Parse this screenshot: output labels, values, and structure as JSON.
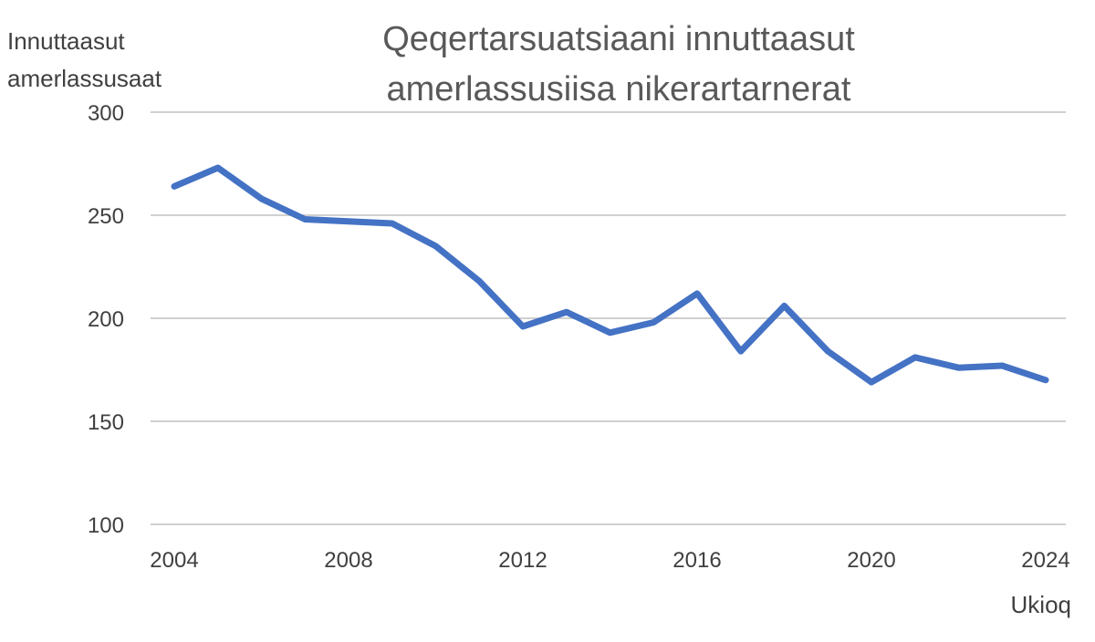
{
  "chart_data": {
    "type": "line",
    "title_lines": [
      "Qeqertarsuatsiaani innuttaasut",
      "amerlassusiisa nikerartarnerat"
    ],
    "ylabel_lines": [
      "Innuttaasut",
      "amerlassusaat"
    ],
    "xlabel": "Ukioq",
    "ylim": [
      100,
      300
    ],
    "yticks": [
      100,
      150,
      200,
      250,
      300
    ],
    "xlim": [
      2004,
      2024
    ],
    "xticks": [
      2004,
      2008,
      2012,
      2016,
      2020,
      2024
    ],
    "grid": true,
    "series": [
      {
        "color": "#4472c4",
        "x": [
          2004,
          2005,
          2006,
          2007,
          2008,
          2009,
          2010,
          2011,
          2012,
          2013,
          2014,
          2015,
          2016,
          2017,
          2018,
          2019,
          2020,
          2021,
          2022,
          2023,
          2024
        ],
        "y": [
          264,
          273,
          258,
          248,
          247,
          246,
          235,
          218,
          196,
          203,
          193,
          198,
          212,
          184,
          206,
          184,
          169,
          181,
          176,
          177,
          170
        ]
      }
    ]
  }
}
